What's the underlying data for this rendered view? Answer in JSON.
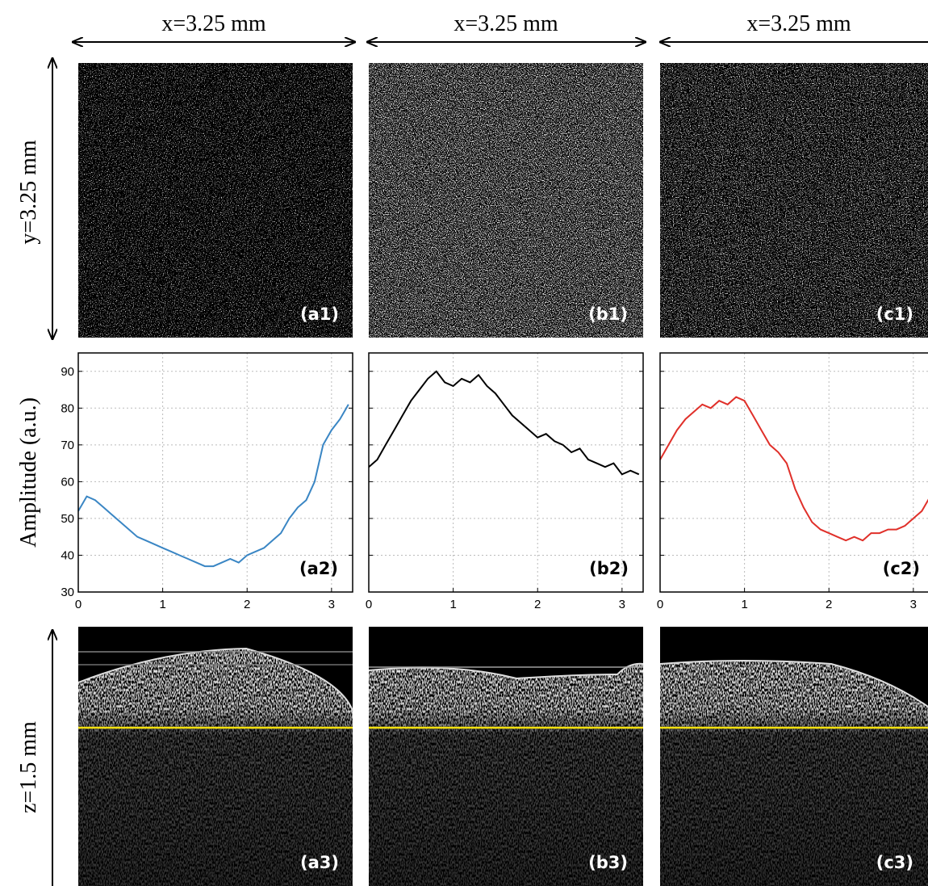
{
  "figure": {
    "x_labels": [
      "x=3.25 mm",
      "x=3.25 mm",
      "x=3.25 mm"
    ],
    "y_label": "y=3.25 mm",
    "z_label": "z=1.5 mm",
    "image_panels": [
      "(a1)",
      "(b1)",
      "(c1)",
      "(a3)",
      "(b3)",
      "(c3)"
    ]
  },
  "chart_data": [
    {
      "type": "line",
      "panel_label": "(a2)",
      "ylabel": "Amplitude (a.u.)",
      "color": "#3a86c4",
      "x": [
        0,
        0.1,
        0.2,
        0.3,
        0.4,
        0.5,
        0.6,
        0.7,
        0.8,
        0.9,
        1,
        1.1,
        1.2,
        1.3,
        1.4,
        1.5,
        1.6,
        1.7,
        1.8,
        1.9,
        2,
        2.1,
        2.2,
        2.3,
        2.4,
        2.5,
        2.6,
        2.7,
        2.8,
        2.9,
        3,
        3.1,
        3.2
      ],
      "values": [
        52,
        56,
        55,
        53,
        51,
        49,
        47,
        45,
        44,
        43,
        42,
        41,
        40,
        39,
        38,
        37,
        37,
        38,
        39,
        38,
        40,
        41,
        42,
        44,
        46,
        50,
        53,
        55,
        60,
        70,
        74,
        77,
        81
      ],
      "xlim": [
        0,
        3.25
      ],
      "ylim": [
        30,
        95
      ],
      "xticks": [
        0,
        1,
        2,
        3
      ],
      "yticks": [
        30,
        40,
        50,
        60,
        70,
        80,
        90
      ],
      "grid": true
    },
    {
      "type": "line",
      "panel_label": "(b2)",
      "color": "#000000",
      "x": [
        0,
        0.1,
        0.2,
        0.3,
        0.4,
        0.5,
        0.6,
        0.7,
        0.8,
        0.9,
        1,
        1.1,
        1.2,
        1.3,
        1.4,
        1.5,
        1.6,
        1.7,
        1.8,
        1.9,
        2,
        2.1,
        2.2,
        2.3,
        2.4,
        2.5,
        2.6,
        2.7,
        2.8,
        2.9,
        3,
        3.1,
        3.2
      ],
      "values": [
        64,
        66,
        70,
        74,
        78,
        82,
        85,
        88,
        90,
        87,
        86,
        88,
        87,
        89,
        86,
        84,
        81,
        78,
        76,
        74,
        72,
        73,
        71,
        70,
        68,
        69,
        66,
        65,
        64,
        65,
        62,
        63,
        62
      ],
      "xlim": [
        0,
        3.25
      ],
      "ylim": [
        30,
        95
      ],
      "xticks": [
        0,
        1,
        2,
        3
      ],
      "yticks": [
        30,
        40,
        50,
        60,
        70,
        80,
        90
      ],
      "grid": true
    },
    {
      "type": "line",
      "panel_label": "(c2)",
      "color": "#e0302a",
      "x": [
        0,
        0.1,
        0.2,
        0.3,
        0.4,
        0.5,
        0.6,
        0.7,
        0.8,
        0.9,
        1,
        1.1,
        1.2,
        1.3,
        1.4,
        1.5,
        1.6,
        1.7,
        1.8,
        1.9,
        2,
        2.1,
        2.2,
        2.3,
        2.4,
        2.5,
        2.6,
        2.7,
        2.8,
        2.9,
        3,
        3.1,
        3.2
      ],
      "values": [
        66,
        70,
        74,
        77,
        79,
        81,
        80,
        82,
        81,
        83,
        82,
        78,
        74,
        70,
        68,
        65,
        58,
        53,
        49,
        47,
        46,
        45,
        44,
        45,
        44,
        46,
        46,
        47,
        47,
        48,
        50,
        52,
        56
      ],
      "xlim": [
        0,
        3.25
      ],
      "ylim": [
        30,
        95
      ],
      "xticks": [
        0,
        1,
        2,
        3
      ],
      "yticks": [
        30,
        40,
        50,
        60,
        70,
        80,
        90
      ],
      "grid": true
    }
  ]
}
